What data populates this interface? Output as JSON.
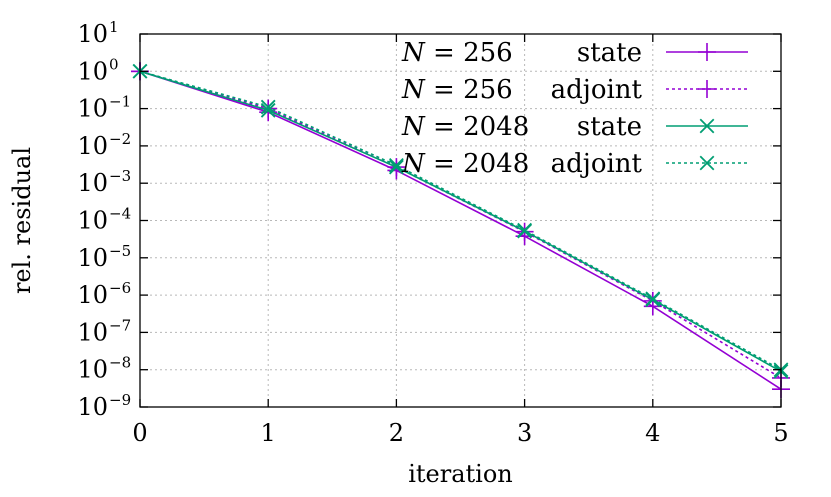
{
  "chart_data": {
    "type": "line",
    "xlabel": "iteration",
    "ylabel": "rel. residual",
    "x": [
      0,
      1,
      2,
      3,
      4,
      5
    ],
    "xlim": [
      0,
      5
    ],
    "ylim": [
      1e-09,
      10
    ],
    "yscale": "log",
    "grid": true,
    "legend_position": "top-right",
    "x_ticks": [
      "0",
      "1",
      "2",
      "3",
      "4",
      "5"
    ],
    "y_ticks": [
      {
        "base": "10",
        "exp": "1",
        "value": 10
      },
      {
        "base": "10",
        "exp": "0",
        "value": 1
      },
      {
        "base": "10",
        "exp": "−1",
        "value": 0.1
      },
      {
        "base": "10",
        "exp": "−2",
        "value": 0.01
      },
      {
        "base": "10",
        "exp": "−3",
        "value": 0.001
      },
      {
        "base": "10",
        "exp": "−4",
        "value": 0.0001
      },
      {
        "base": "10",
        "exp": "−5",
        "value": 1e-05
      },
      {
        "base": "10",
        "exp": "−6",
        "value": 1e-06
      },
      {
        "base": "10",
        "exp": "−7",
        "value": 1e-07
      },
      {
        "base": "10",
        "exp": "−8",
        "value": 1e-08
      },
      {
        "base": "10",
        "exp": "−9",
        "value": 1e-09
      }
    ],
    "series": [
      {
        "name": "state",
        "legend_n": "N = 256",
        "legend_label": "state",
        "color": "#9400d3",
        "dash": "solid",
        "marker": "plus",
        "values": [
          1,
          0.08,
          0.0022,
          3.8e-05,
          5e-07,
          3e-09
        ]
      },
      {
        "name": "adjoint",
        "legend_n": "N = 256",
        "legend_label": "adjoint",
        "color": "#9400d3",
        "dash": "dotted",
        "marker": "plus",
        "values": [
          1,
          0.1,
          0.0027,
          5e-05,
          7e-07,
          6e-09
        ]
      },
      {
        "name": "state",
        "legend_n": "N = 2048",
        "legend_label": "state",
        "color": "#009e73",
        "dash": "solid",
        "marker": "cross",
        "values": [
          1,
          0.09,
          0.0027,
          5.2e-05,
          7.5e-07,
          9e-09
        ]
      },
      {
        "name": "adjoint",
        "legend_n": "N = 2048",
        "legend_label": "adjoint",
        "color": "#009e73",
        "dash": "dotted",
        "marker": "cross",
        "values": [
          1,
          0.11,
          0.003,
          5.5e-05,
          8e-07,
          1e-08
        ]
      }
    ]
  }
}
